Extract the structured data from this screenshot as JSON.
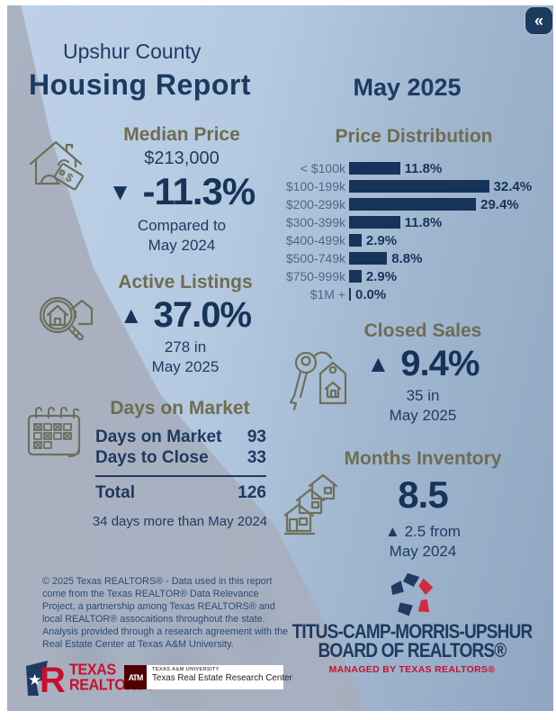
{
  "header": {
    "county": "Upshur County",
    "title": "Housing Report",
    "period": "May 2025",
    "collapse_icon": "«"
  },
  "median_price": {
    "title": "Median Price",
    "value": "$213,000",
    "arrow": "▼",
    "change": "-11.3%",
    "compare_line1": "Compared to",
    "compare_line2": "May 2024"
  },
  "active_listings": {
    "title": "Active Listings",
    "arrow": "▲",
    "change": "37.0%",
    "count_line1": "278 in",
    "count_line2": "May 2025"
  },
  "closed_sales": {
    "title": "Closed Sales",
    "arrow": "▲",
    "change": "9.4%",
    "count_line1": "35 in",
    "count_line2": "May 2025"
  },
  "days_on_market": {
    "title": "Days on Market",
    "rows": [
      {
        "label": "Days on Market",
        "value": "93"
      },
      {
        "label": "Days to Close",
        "value": "33"
      }
    ],
    "total_label": "Total",
    "total_value": "126",
    "note": "34 days more than May 2024"
  },
  "months_inventory": {
    "title": "Months Inventory",
    "value": "8.5",
    "change_line1": "▲ 2.5 from",
    "change_line2": "May 2024"
  },
  "chart_data": {
    "type": "bar",
    "orientation": "horizontal",
    "title": "Price Distribution",
    "categories": [
      "< $100k",
      "$100-199k",
      "$200-299k",
      "$300-399k",
      "$400-499k",
      "$500-749k",
      "$750-999k",
      "$1M +"
    ],
    "values": [
      11.8,
      32.4,
      29.4,
      11.8,
      2.9,
      8.8,
      2.9,
      0.0
    ],
    "value_labels": [
      "11.8%",
      "32.4%",
      "29.4%",
      "11.8%",
      "2.9%",
      "8.8%",
      "2.9%",
      "0.0%"
    ],
    "xlim": [
      0,
      35
    ],
    "grid": false,
    "legend": false,
    "bar_color": "#16345a"
  },
  "icons": {
    "median_price": "house-price-tag-icon",
    "active_listings": "magnifier-house-icon",
    "days_on_market": "calendar-icon",
    "closed_sales": "key-house-tag-icon",
    "months_inventory": "houses-icon",
    "collapse": "double-chevron-left-icon"
  },
  "footer": {
    "disclaimer": "© 2025 Texas REALTORS® - Data used in this report come from the Texas REALTOR® Data Relevance Project, a partnership among Texas REALTORS® and local REALTOR® assocaitions throughout the state. Analysis provided through a research agreement with the Real Estate Center at Texas A&M University.",
    "texas_realtors_logo": {
      "name_line1": "TEXAS",
      "name_line2": "REALTORS®"
    },
    "tamu_logo": {
      "mark": "ATM",
      "university": "TEXAS A&M UNIVERSITY",
      "center": "Texas Real Estate Research Center"
    },
    "board_logo": {
      "line1": "TITUS-CAMP-MORRIS-UPSHUR",
      "line2": "BOARD OF REALTORS®",
      "line3": "MANAGED BY TEXAS REALTORS®"
    }
  },
  "colors": {
    "navy_text": "#1e3c63",
    "number_navy": "#16345a",
    "olive_title": "#6f6c51",
    "icon_olive": "#6d7059",
    "bar_navy": "#16345a",
    "chart_label": "#51658a",
    "brand_red": "#c8102e",
    "tamu_maroon": "#500000",
    "bg_light_blue": "#b5cae1",
    "bg_steel_blue": "#8fa6c2",
    "bg_gray": "#a7afbe",
    "button_navy": "#1d3b5e"
  }
}
